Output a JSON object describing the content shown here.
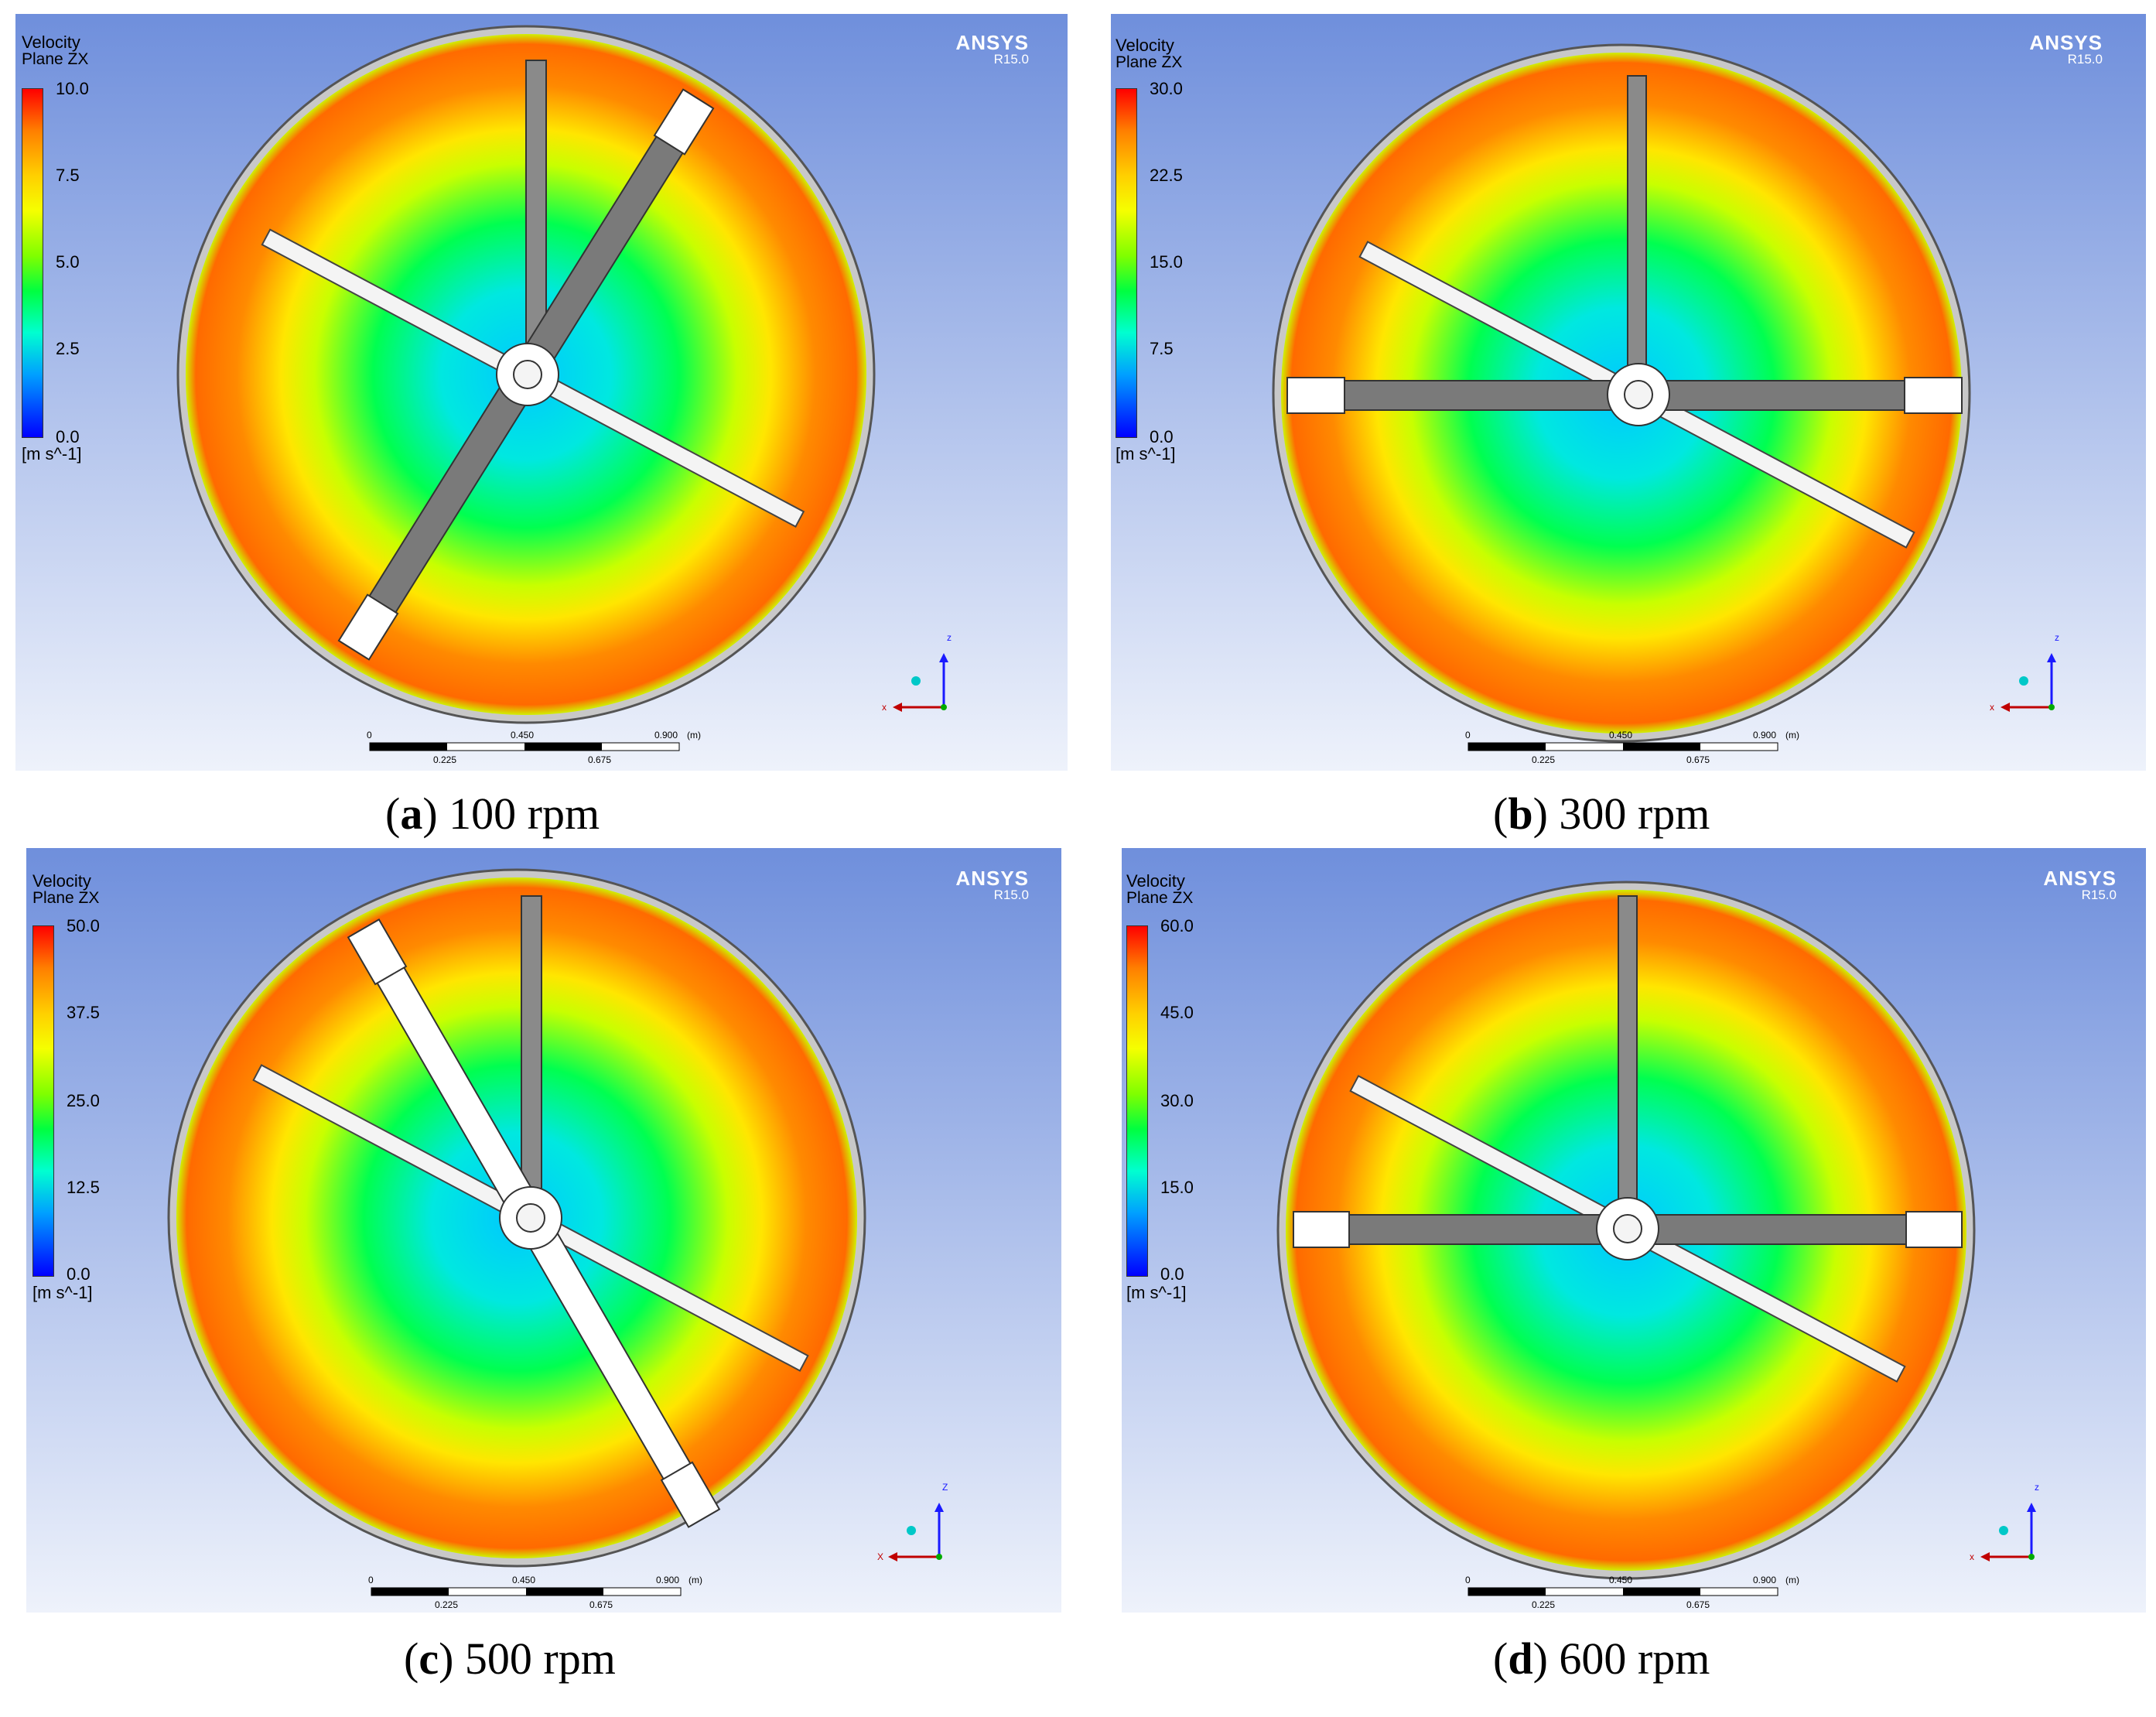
{
  "panels": [
    {
      "legend_title": "Velocity",
      "legend_subtitle": "Plane ZX",
      "ticks": [
        "10.0",
        "7.5",
        "5.0",
        "2.5",
        "0.0"
      ],
      "unit": "[m s^-1]",
      "brand": "ANSYS",
      "version": "R15.0",
      "scale_top": [
        "0",
        "0.450",
        "0.900",
        "(m)"
      ],
      "scale_bottom": [
        "0.225",
        "0.675"
      ],
      "axis_labels": [
        "z",
        "x"
      ],
      "caption_letter": "a",
      "caption_rest": " 100 rpm",
      "caption_open": "(",
      "caption_close": ")"
    },
    {
      "legend_title": "Velocity",
      "legend_subtitle": "Plane ZX",
      "ticks": [
        "30.0",
        "22.5",
        "15.0",
        "7.5",
        "0.0"
      ],
      "unit": "[m s^-1]",
      "brand": "ANSYS",
      "version": "R15.0",
      "scale_top": [
        "0",
        "0.450",
        "0.900",
        "(m)"
      ],
      "scale_bottom": [
        "0.225",
        "0.675"
      ],
      "axis_labels": [
        "z",
        "x"
      ],
      "caption_letter": "b",
      "caption_rest": " 300 rpm",
      "caption_open": "(",
      "caption_close": ")"
    },
    {
      "legend_title": "Velocity",
      "legend_subtitle": "Plane ZX",
      "ticks": [
        "50.0",
        "37.5",
        "25.0",
        "12.5",
        "0.0"
      ],
      "unit": "[m s^-1]",
      "brand": "ANSYS",
      "version": "R15.0",
      "scale_top": [
        "0",
        "0.450",
        "0.900",
        "(m)"
      ],
      "scale_bottom": [
        "0.225",
        "0.675"
      ],
      "axis_labels": [
        "Z",
        "X"
      ],
      "caption_letter": "c",
      "caption_rest": " 500 rpm",
      "caption_open": "(",
      "caption_close": ")"
    },
    {
      "legend_title": "Velocity",
      "legend_subtitle": "Plane ZX",
      "ticks": [
        "60.0",
        "45.0",
        "30.0",
        "15.0",
        "0.0"
      ],
      "unit": "[m s^-1]",
      "brand": "ANSYS",
      "version": "R15.0",
      "scale_top": [
        "0",
        "0.450",
        "0.900",
        "(m)"
      ],
      "scale_bottom": [
        "0.225",
        "0.675"
      ],
      "axis_labels": [
        "z",
        "x"
      ],
      "caption_letter": "d",
      "caption_rest": " 600 rpm",
      "caption_open": "(",
      "caption_close": ")"
    }
  ],
  "colors": {
    "background_top": "#6f8fdc",
    "background_bottom": "#eef2fb",
    "contour_center": "#00c8ff",
    "contour_mid": "#00ff50",
    "contour_yellow": "#f0ff00",
    "contour_outer": "#ff6a00",
    "blade": "#7a7a7a",
    "blade_tip": "#ffffff"
  }
}
